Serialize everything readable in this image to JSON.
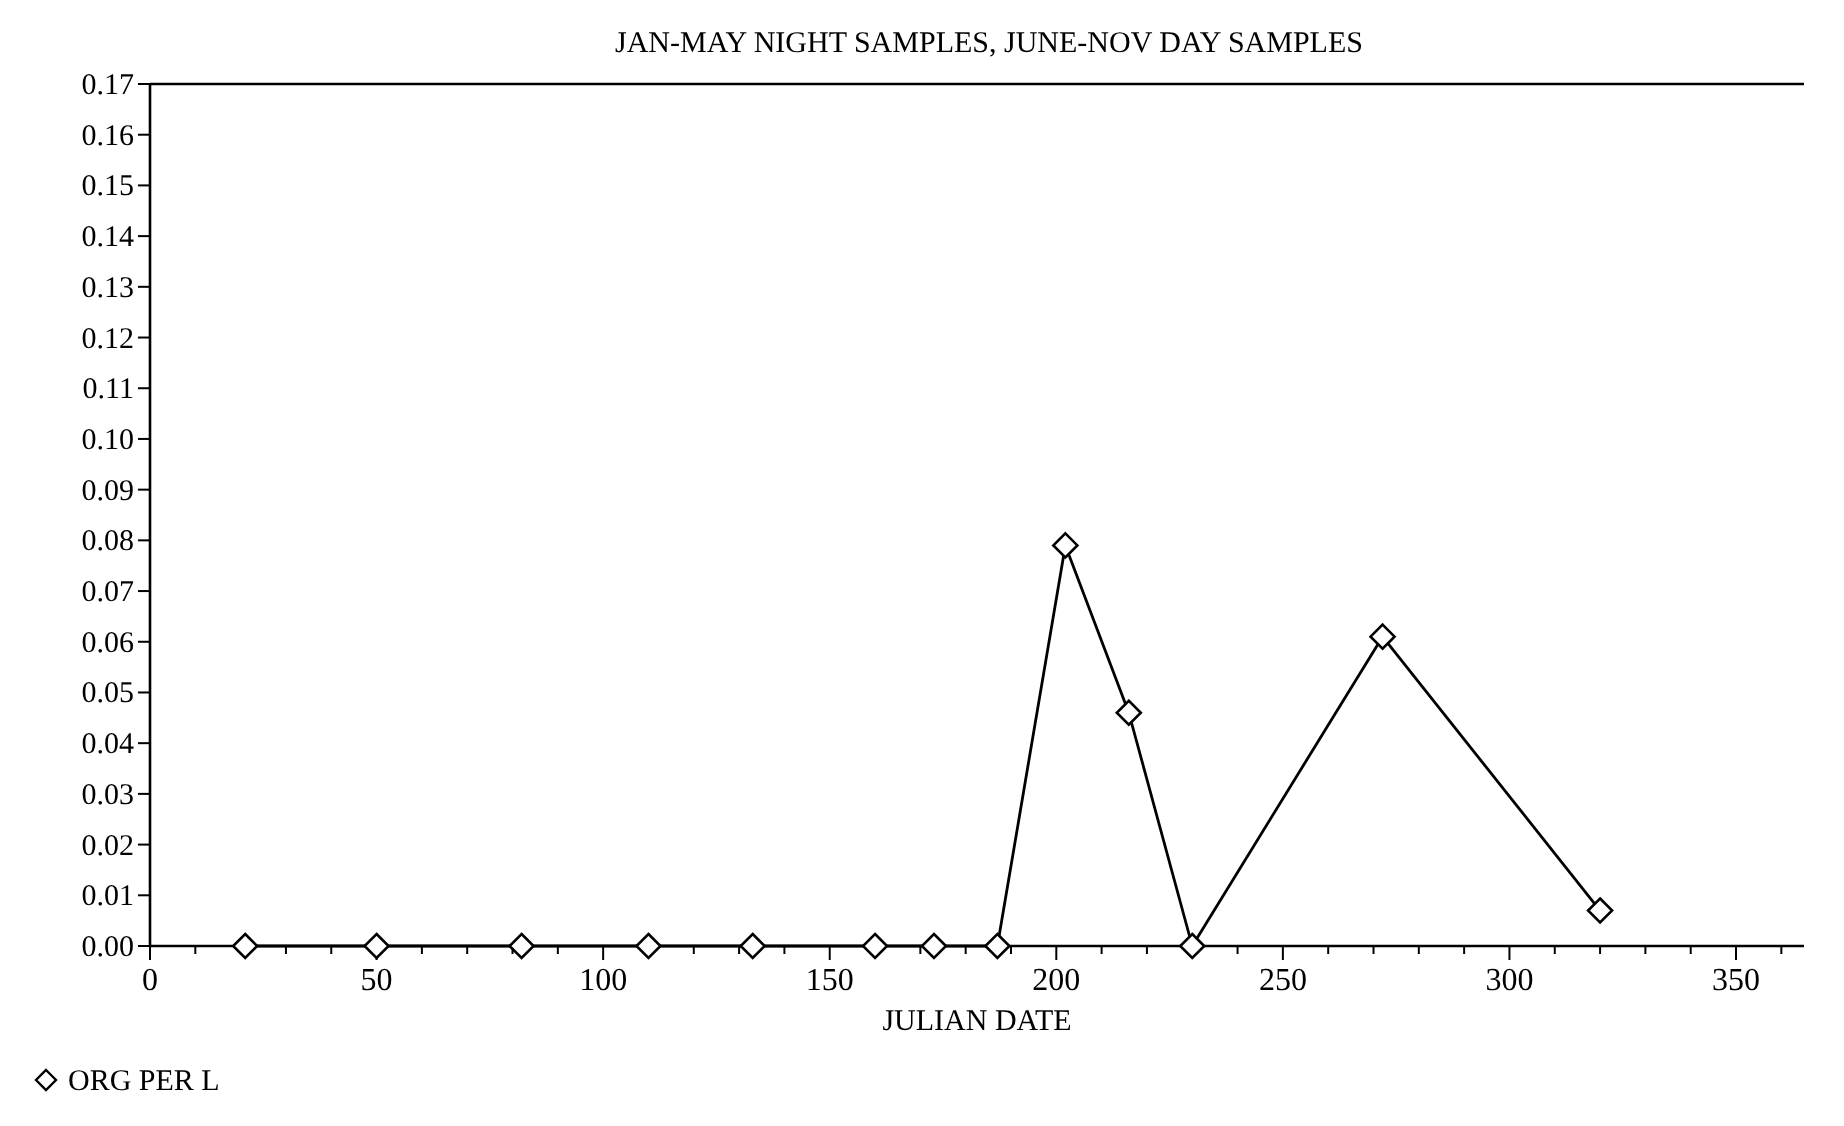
{
  "chart_data": {
    "type": "line",
    "title": "JAN-MAY NIGHT SAMPLES, JUNE-NOV DAY SAMPLES",
    "xlabel": "JULIAN DATE",
    "x": [
      21,
      50,
      82,
      110,
      133,
      160,
      173,
      187,
      202,
      216,
      230,
      272,
      320
    ],
    "series": [
      {
        "name": "ORG PER L",
        "color": "#000000",
        "values": [
          0,
          0,
          0,
          0,
          0,
          0,
          0,
          0,
          0.079,
          0.046,
          0,
          0.061,
          0.007
        ]
      }
    ],
    "xlim": [
      0,
      365
    ],
    "xticks": [
      0,
      {
        "value": 10,
        "label": null
      },
      {
        "value": 20,
        "label": null
      },
      {
        "value": 30,
        "label": null
      },
      {
        "value": 40,
        "label": null
      },
      50,
      {
        "value": 60,
        "label": null
      },
      {
        "value": 70,
        "label": null
      },
      {
        "value": 80,
        "label": null
      },
      {
        "value": 90,
        "label": null
      },
      100,
      {
        "value": 110,
        "label": null
      },
      {
        "value": 120,
        "label": null
      },
      {
        "value": 130,
        "label": null
      },
      {
        "value": 140,
        "label": null
      },
      150,
      {
        "value": 160,
        "label": null
      },
      {
        "value": 170,
        "label": null
      },
      {
        "value": 180,
        "label": null
      },
      {
        "value": 190,
        "label": null
      },
      200,
      {
        "value": 210,
        "label": null
      },
      {
        "value": 220,
        "label": null
      },
      {
        "value": 230,
        "label": null
      },
      {
        "value": 240,
        "label": null
      },
      250,
      {
        "value": 260,
        "label": null
      },
      {
        "value": 270,
        "label": null
      },
      {
        "value": 280,
        "label": null
      },
      {
        "value": 290,
        "label": null
      },
      300,
      {
        "value": 310,
        "label": null
      },
      {
        "value": 320,
        "label": null
      },
      {
        "value": 330,
        "label": null
      },
      {
        "value": 340,
        "label": null
      },
      350,
      {
        "value": 360,
        "label": null
      }
    ],
    "ylim": [
      0,
      0.17
    ],
    "yticks": [
      {
        "value": 0,
        "label": "0.00"
      },
      {
        "value": 0.01,
        "label": "0.01"
      },
      {
        "value": 0.02,
        "label": "0.02"
      },
      {
        "value": 0.03,
        "label": "0.03"
      },
      {
        "value": 0.04,
        "label": "0.04"
      },
      {
        "value": 0.05,
        "label": "0.05"
      },
      {
        "value": 0.06,
        "label": "0.06"
      },
      {
        "value": 0.07,
        "label": "0.07"
      },
      {
        "value": 0.08,
        "label": "0.08"
      },
      {
        "value": 0.09,
        "label": "0.09"
      },
      {
        "value": 0.1,
        "label": "0.10"
      },
      {
        "value": 0.11,
        "label": "0.11"
      },
      {
        "value": 0.12,
        "label": "0.12"
      },
      {
        "value": 0.13,
        "label": "0.13"
      },
      {
        "value": 0.14,
        "label": "0.14"
      },
      {
        "value": 0.15,
        "label": "0.15"
      },
      {
        "value": 0.16,
        "label": "0.16"
      },
      {
        "value": 0.17,
        "label": "0.17"
      }
    ],
    "grid": false,
    "legend": "bottom left",
    "marker": "diamond",
    "line_style": "solid"
  }
}
